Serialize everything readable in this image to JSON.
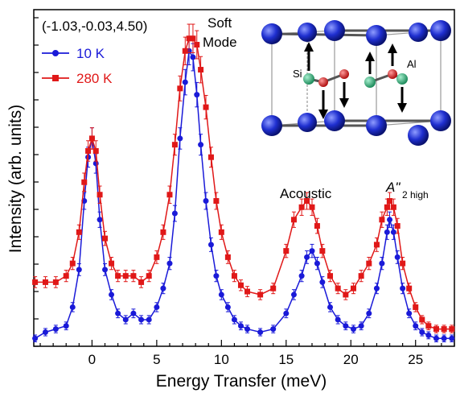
{
  "chart_data": {
    "type": "line",
    "xlabel": "Energy Transfer (meV)",
    "ylabel": "Intensity (arb. units)",
    "xlim": [
      -4.5,
      28
    ],
    "ylim": [
      0,
      1.0
    ],
    "x_ticks": [
      0,
      5,
      10,
      15,
      20,
      25
    ],
    "y_ticks_labeled": false,
    "grid": false,
    "legend_position": "top-left",
    "q_label": "(-1.03,-0.03,4.50)",
    "colors": {
      "series_1": "#1a1ad8",
      "series_2": "#e01818"
    },
    "series": [
      {
        "name": "10 K",
        "marker": "circle",
        "x": [
          -4.4,
          -3.6,
          -2.8,
          -2.0,
          -1.5,
          -1.0,
          -0.6,
          -0.3,
          0.0,
          0.3,
          0.6,
          1.0,
          1.5,
          2.0,
          2.6,
          3.2,
          3.8,
          4.4,
          5.0,
          5.5,
          6.0,
          6.4,
          6.8,
          7.2,
          7.5,
          7.8,
          8.1,
          8.4,
          8.8,
          9.2,
          9.6,
          10.0,
          10.5,
          11.0,
          11.5,
          12.0,
          13.0,
          14.0,
          15.0,
          15.6,
          16.2,
          16.6,
          17.0,
          17.4,
          17.8,
          18.4,
          19.0,
          19.6,
          20.2,
          20.8,
          21.4,
          22.0,
          22.4,
          22.8,
          23.0,
          23.3,
          23.6,
          24.0,
          24.5,
          25.0,
          25.5,
          26.0,
          26.6,
          27.2,
          27.8
        ],
        "values": [
          0.02,
          0.04,
          0.05,
          0.06,
          0.12,
          0.24,
          0.46,
          0.6,
          0.66,
          0.58,
          0.4,
          0.24,
          0.16,
          0.1,
          0.08,
          0.1,
          0.08,
          0.08,
          0.12,
          0.18,
          0.26,
          0.42,
          0.66,
          0.84,
          0.94,
          0.92,
          0.8,
          0.64,
          0.46,
          0.32,
          0.22,
          0.16,
          0.12,
          0.08,
          0.06,
          0.05,
          0.04,
          0.05,
          0.1,
          0.16,
          0.22,
          0.28,
          0.3,
          0.26,
          0.2,
          0.12,
          0.08,
          0.06,
          0.05,
          0.06,
          0.1,
          0.18,
          0.26,
          0.36,
          0.4,
          0.36,
          0.28,
          0.18,
          0.1,
          0.06,
          0.04,
          0.03,
          0.02,
          0.02,
          0.02
        ]
      },
      {
        "name": "280 K",
        "marker": "square",
        "x": [
          -4.4,
          -3.6,
          -2.8,
          -2.0,
          -1.5,
          -1.0,
          -0.6,
          -0.3,
          0.0,
          0.3,
          0.6,
          1.0,
          1.5,
          2.0,
          2.6,
          3.2,
          3.8,
          4.4,
          5.0,
          5.5,
          6.0,
          6.4,
          6.8,
          7.2,
          7.5,
          7.8,
          8.1,
          8.4,
          8.8,
          9.2,
          9.6,
          10.0,
          10.5,
          11.0,
          11.5,
          12.0,
          13.0,
          14.0,
          15.0,
          15.6,
          16.2,
          16.6,
          17.0,
          17.4,
          17.8,
          18.4,
          19.0,
          19.6,
          20.2,
          20.8,
          21.4,
          22.0,
          22.4,
          22.8,
          23.0,
          23.3,
          23.6,
          24.0,
          24.5,
          25.0,
          25.5,
          26.0,
          26.6,
          27.2,
          27.8
        ],
        "values": [
          0.2,
          0.2,
          0.2,
          0.22,
          0.26,
          0.36,
          0.52,
          0.62,
          0.66,
          0.62,
          0.48,
          0.34,
          0.26,
          0.22,
          0.22,
          0.22,
          0.2,
          0.22,
          0.28,
          0.36,
          0.48,
          0.64,
          0.82,
          0.94,
          0.98,
          0.98,
          0.96,
          0.88,
          0.76,
          0.6,
          0.46,
          0.36,
          0.28,
          0.22,
          0.19,
          0.17,
          0.16,
          0.18,
          0.3,
          0.4,
          0.44,
          0.46,
          0.44,
          0.38,
          0.3,
          0.22,
          0.18,
          0.16,
          0.18,
          0.22,
          0.26,
          0.32,
          0.4,
          0.44,
          0.46,
          0.44,
          0.38,
          0.26,
          0.18,
          0.12,
          0.08,
          0.06,
          0.05,
          0.05,
          0.05
        ]
      }
    ],
    "annotations": {
      "soft_line1": "Soft",
      "soft_line2": "Mode",
      "acoustic": "Acoustic",
      "a2_main": "A\"",
      "a2_sub": "2 high",
      "si_label": "Si",
      "al_label": "Al"
    }
  }
}
